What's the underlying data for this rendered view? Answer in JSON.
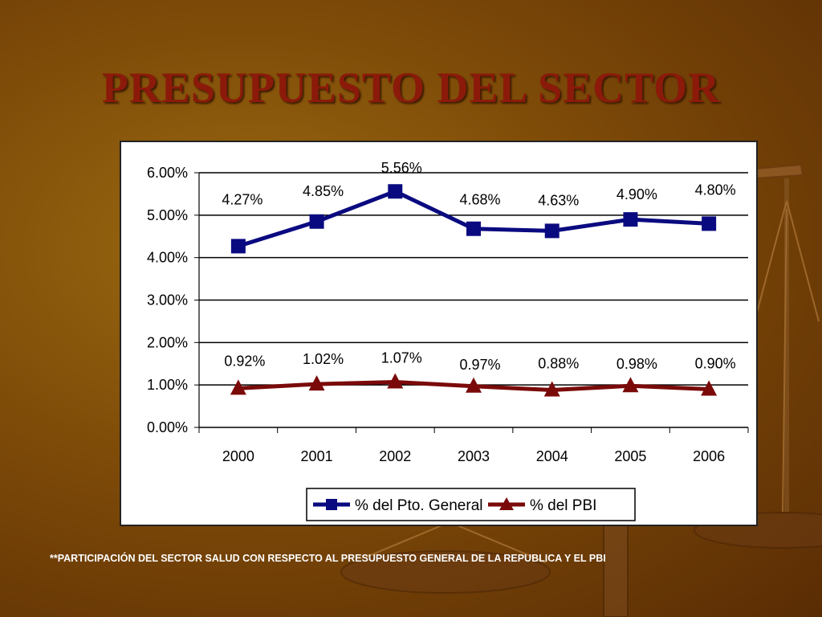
{
  "title": "PRESUPUESTO DEL SECTOR",
  "footnote": "**PARTICIPACIÓN DEL SECTOR SALUD CON RESPECTO AL PRESUPUESTO GENERAL DE LA REPUBLICA Y EL PBI",
  "colors": {
    "background": "#7d4a08",
    "title": "#8b1a0a",
    "series_general": "#0a0a80",
    "series_pbi": "#7a0a0a"
  },
  "chart_data": {
    "type": "line",
    "categories": [
      "2000",
      "2001",
      "2002",
      "2003",
      "2004",
      "2005",
      "2006"
    ],
    "ylim": [
      0,
      6
    ],
    "yticks": [
      "0.00%",
      "1.00%",
      "2.00%",
      "3.00%",
      "4.00%",
      "5.00%",
      "6.00%"
    ],
    "grid": true,
    "legend_position": "bottom",
    "series": [
      {
        "name": "% del Pto. General",
        "marker": "square",
        "color": "#0a0a80",
        "values": [
          4.27,
          4.85,
          5.56,
          4.68,
          4.63,
          4.9,
          4.8
        ],
        "labels": [
          "4.27%",
          "4.85%",
          "5.56%",
          "4.68%",
          "4.63%",
          "4.90%",
          "4.80%"
        ]
      },
      {
        "name": "% del PBI",
        "marker": "triangle",
        "color": "#7a0a0a",
        "values": [
          0.92,
          1.02,
          1.07,
          0.97,
          0.88,
          0.98,
          0.9
        ],
        "labels": [
          "0.92%",
          "1.02%",
          "1.07%",
          "0.97%",
          "0.88%",
          "0.98%",
          "0.90%"
        ]
      }
    ]
  }
}
